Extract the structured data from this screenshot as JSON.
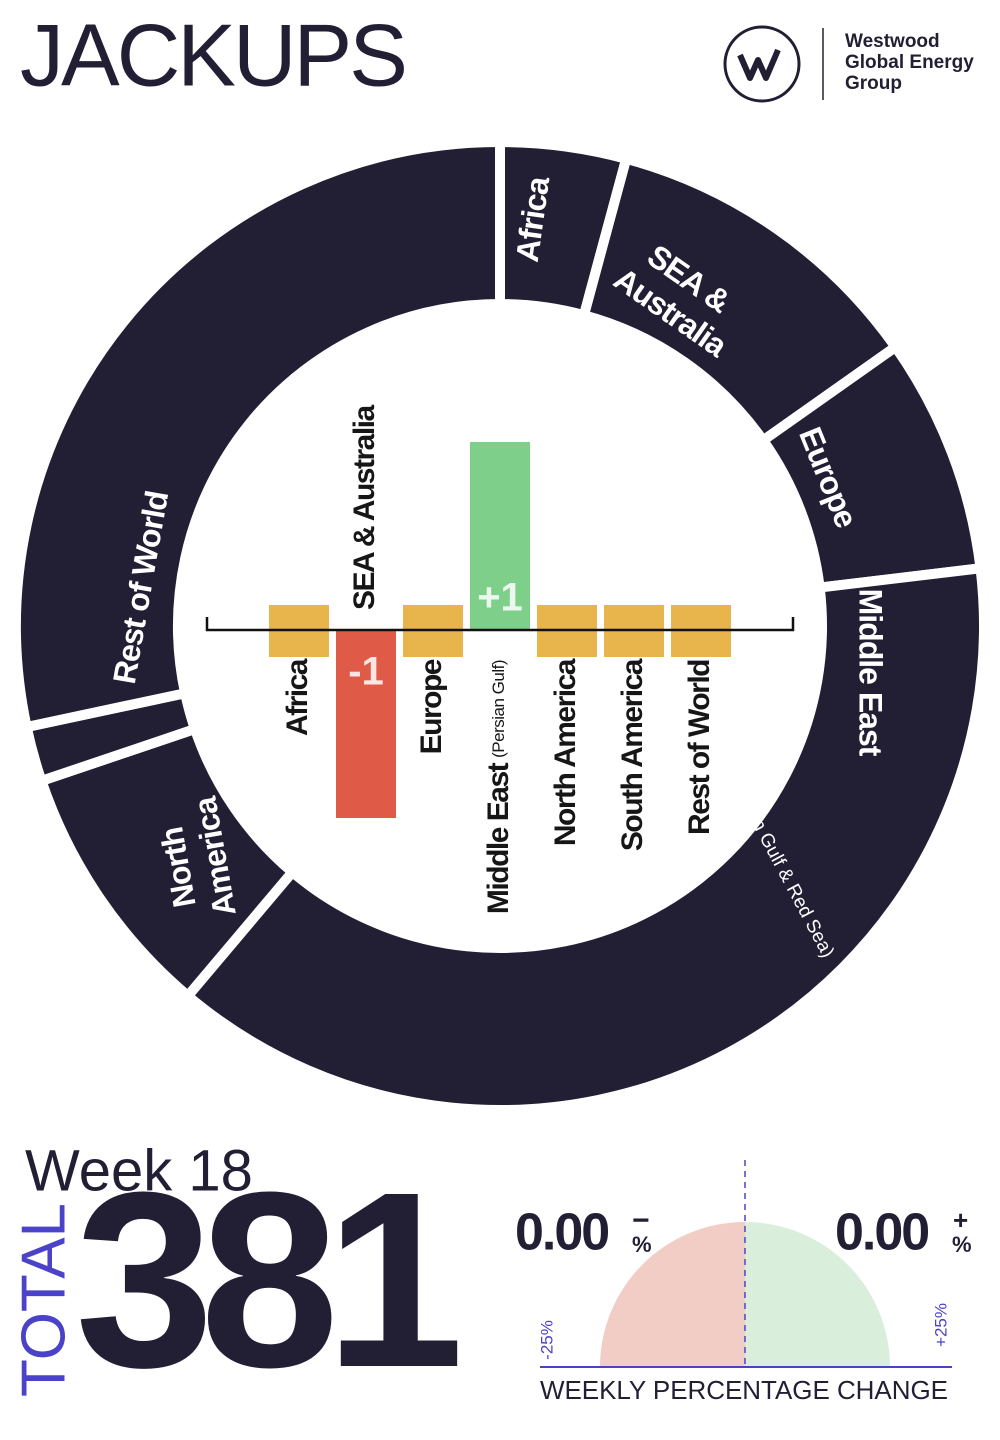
{
  "header": {
    "title": "JACKUPS",
    "brand": [
      "Westwood",
      "Global Energy",
      "Group"
    ]
  },
  "chart_data": [
    {
      "type": "donut",
      "categories": [
        "Africa",
        "SEA & Australia",
        "Europe",
        "Middle East",
        "North America",
        null,
        "Rest of World"
      ],
      "values": [
        16,
        42,
        30,
        145,
        33,
        7,
        108
      ],
      "category_notes": [
        null,
        null,
        null,
        "(Persian Gulf & Red Sea)",
        null,
        null,
        null
      ],
      "color": "#221f35"
    },
    {
      "type": "bar",
      "categories": [
        "Africa",
        "SEA & Australia",
        "Europe",
        "Middle East",
        "North America",
        "South America",
        "Rest of World"
      ],
      "category_notes": [
        null,
        null,
        null,
        "(Persian Gulf)",
        null,
        null,
        null
      ],
      "values": [
        0,
        -1,
        0,
        1,
        0,
        0,
        0
      ],
      "value_labels": [
        null,
        "-1",
        null,
        "+1",
        null,
        null,
        null
      ],
      "ylim": [
        -1,
        1
      ],
      "colors": {
        "positive": "#7ecf89",
        "negative": "#e05a48",
        "zero": "#e8b54c"
      }
    }
  ],
  "summary": {
    "week": "Week 18",
    "total_label": "TOTAL",
    "total": 381
  },
  "weekly_change": {
    "title": "WEEKLY PERCENTAGE CHANGE",
    "decrease": {
      "value": "0.00",
      "sign": "−",
      "unit": "%"
    },
    "increase": {
      "value": "0.00",
      "sign": "+",
      "unit": "%"
    },
    "min_label": "-25%",
    "max_label": "+25%"
  }
}
